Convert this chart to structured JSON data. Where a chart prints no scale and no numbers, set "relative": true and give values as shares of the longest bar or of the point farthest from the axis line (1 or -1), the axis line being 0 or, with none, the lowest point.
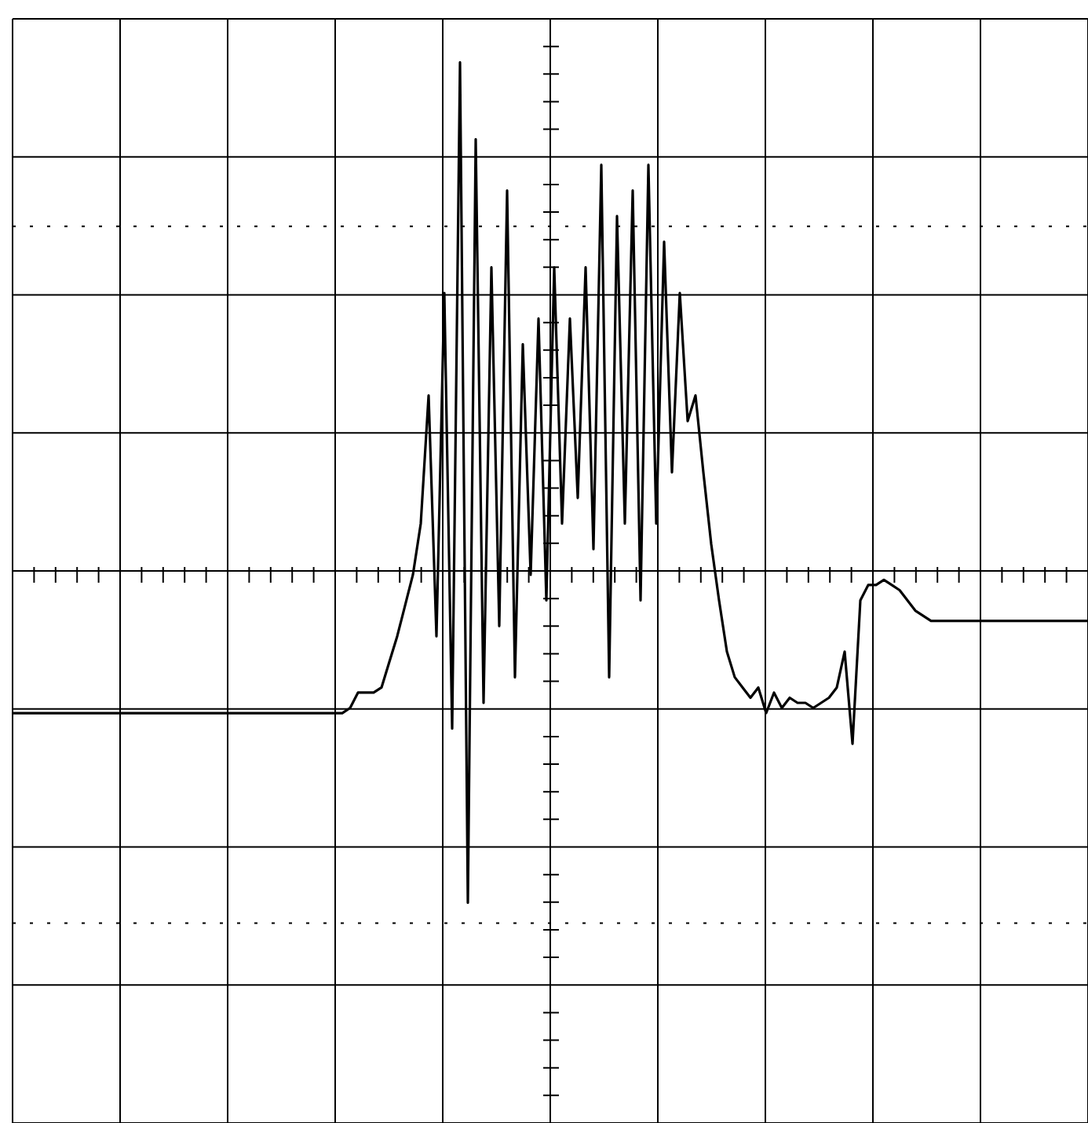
{
  "chart_data": {
    "type": "line",
    "relative": true,
    "grid": true,
    "marker": "none",
    "line_style": "solid",
    "legend": false,
    "ref_lines": [
      {
        "axis": "y",
        "value": 0.68,
        "line_style": "dotted",
        "color": "#000000"
      },
      {
        "axis": "y",
        "value": -0.68,
        "line_style": "dotted",
        "color": "#000000"
      }
    ],
    "categories": [
      null,
      null,
      null,
      null,
      null,
      null,
      null,
      null,
      null,
      null,
      null,
      null,
      null,
      null,
      null,
      null,
      null,
      null,
      null,
      null,
      null,
      null,
      null,
      null,
      null,
      null,
      null,
      null,
      null,
      null,
      null,
      null,
      null,
      null,
      null,
      null,
      null,
      null,
      null,
      null,
      null,
      null,
      null,
      null,
      null,
      null,
      null,
      null,
      null,
      null,
      null,
      null,
      null,
      null,
      null,
      null,
      null,
      null,
      null,
      null,
      null,
      null,
      null,
      null,
      null,
      null,
      null,
      null,
      null,
      null,
      null,
      null,
      null,
      null,
      null,
      null,
      null,
      null,
      null,
      null,
      null,
      null,
      null,
      null,
      null,
      null,
      null,
      null,
      null,
      null,
      null,
      null,
      null,
      null,
      null,
      null,
      null,
      null,
      null,
      null,
      null,
      null,
      null,
      null,
      null,
      null,
      null,
      null,
      null,
      null,
      null,
      null,
      null,
      null,
      null,
      null,
      null,
      null,
      null,
      null,
      null,
      null,
      null,
      null,
      null,
      null,
      null,
      null,
      null,
      null,
      null,
      null,
      null,
      null,
      null,
      null,
      null,
      null
    ],
    "series": [
      {
        "color": "#000000",
        "values": [
          -0.27,
          -0.27,
          -0.27,
          -0.27,
          -0.27,
          -0.27,
          -0.27,
          -0.27,
          -0.27,
          -0.27,
          -0.27,
          -0.27,
          -0.27,
          -0.27,
          -0.27,
          -0.27,
          -0.27,
          -0.27,
          -0.27,
          -0.27,
          -0.27,
          -0.27,
          -0.27,
          -0.27,
          -0.27,
          -0.27,
          -0.27,
          -0.27,
          -0.27,
          -0.27,
          -0.27,
          -0.27,
          -0.27,
          -0.27,
          -0.27,
          -0.27,
          -0.27,
          -0.27,
          -0.27,
          -0.27,
          -0.27,
          -0.27,
          -0.27,
          -0.26,
          -0.23,
          -0.23,
          -0.23,
          -0.22,
          -0.17,
          -0.12,
          -0.06,
          0.0,
          0.1,
          0.35,
          -0.12,
          0.55,
          -0.3,
          1.0,
          -0.64,
          0.85,
          -0.25,
          0.6,
          -0.1,
          0.75,
          -0.2,
          0.45,
          0.0,
          0.5,
          -0.05,
          0.6,
          0.1,
          0.5,
          0.15,
          0.6,
          0.05,
          0.8,
          -0.2,
          0.7,
          0.1,
          0.75,
          -0.05,
          0.8,
          0.1,
          0.65,
          0.2,
          0.55,
          0.3,
          0.35,
          0.2,
          0.06,
          -0.05,
          -0.15,
          -0.2,
          -0.22,
          -0.24,
          -0.22,
          -0.27,
          -0.23,
          -0.26,
          -0.24,
          -0.25,
          -0.25,
          -0.26,
          -0.25,
          -0.24,
          -0.22,
          -0.15,
          -0.33,
          -0.05,
          -0.02,
          -0.02,
          -0.01,
          -0.02,
          -0.03,
          -0.05,
          -0.07,
          -0.08,
          -0.09,
          -0.09,
          -0.09,
          -0.09,
          -0.09,
          -0.09,
          -0.09,
          -0.09,
          -0.09,
          -0.09,
          -0.09,
          -0.09,
          -0.09,
          -0.09,
          -0.09,
          -0.09,
          -0.09,
          -0.09,
          -0.09,
          -0.09,
          -0.09
        ]
      }
    ]
  }
}
